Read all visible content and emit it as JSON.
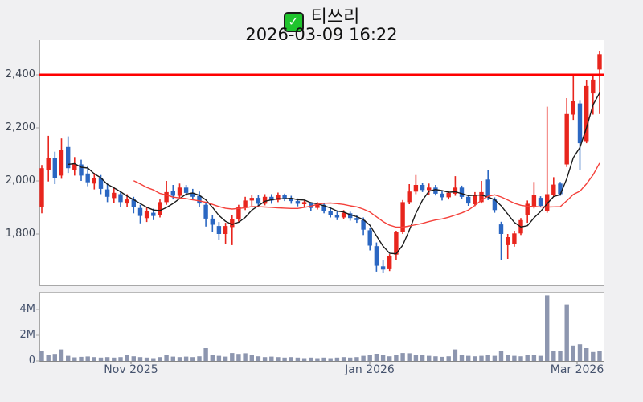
{
  "header": {
    "check_icon": "white-check-mark",
    "check_glyph": "✓",
    "title": "티쓰리",
    "subtitle": "2026-03-09 16:22"
  },
  "colors": {
    "background": "#f0f0f2",
    "plot_background": "#ffffff",
    "up_candle": "#e8251d",
    "down_candle": "#2b67c2",
    "ma_short": "#1b1b1b",
    "ma_long": "#f4403a",
    "highlight_line": "#fe0000",
    "volume_bar": "#8d96af",
    "axis_spine": "#a8a8a8",
    "price_label": "#3a4250",
    "date_label": "#46536e"
  },
  "chart_data": [
    {
      "type": "candlestick",
      "name": "price",
      "title": "티쓰리",
      "datetime": "2026-03-09 16:22",
      "ytick_labels": [
        "2,400",
        "2,200",
        "2,000",
        "1,800"
      ],
      "ytick_values": [
        2400,
        2200,
        2000,
        1800
      ],
      "ylim": [
        1606,
        2539
      ],
      "grid": false,
      "x_tick_labels": [
        "Nov 2025",
        "Jan 2026",
        "Mar 2026"
      ],
      "hline": {
        "value": 2400,
        "color": "#fe0000",
        "note": "horizontal red level line at 2,400"
      },
      "overlays": [
        {
          "name": "ma-short",
          "period": 5,
          "color": "#1b1b1b"
        },
        {
          "name": "ma-long",
          "period": 15,
          "color": "#f4403a"
        }
      ],
      "ohlc": [
        [
          1900,
          2060,
          1878,
          2048
        ],
        [
          2040,
          2170,
          1998,
          2088
        ],
        [
          2088,
          2110,
          1988,
          2010
        ],
        [
          2020,
          2160,
          2008,
          2118
        ],
        [
          2128,
          2168,
          2030,
          2048
        ],
        [
          2042,
          2090,
          2020,
          2062
        ],
        [
          2062,
          2080,
          2000,
          2020
        ],
        [
          2028,
          2058,
          1980,
          1995
        ],
        [
          1990,
          2030,
          1968,
          2010
        ],
        [
          2010,
          2022,
          1950,
          1970
        ],
        [
          1968,
          1990,
          1920,
          1940
        ],
        [
          1935,
          1975,
          1918,
          1955
        ],
        [
          1950,
          1962,
          1900,
          1920
        ],
        [
          1915,
          1950,
          1902,
          1930
        ],
        [
          1930,
          1940,
          1878,
          1900
        ],
        [
          1898,
          1910,
          1840,
          1868
        ],
        [
          1860,
          1900,
          1845,
          1885
        ],
        [
          1880,
          1895,
          1852,
          1868
        ],
        [
          1870,
          1930,
          1862,
          1920
        ],
        [
          1920,
          2000,
          1910,
          1958
        ],
        [
          1962,
          1985,
          1930,
          1944
        ],
        [
          1944,
          1990,
          1935,
          1975
        ],
        [
          1975,
          1985,
          1944,
          1955
        ],
        [
          1955,
          1970,
          1928,
          1940
        ],
        [
          1944,
          1960,
          1900,
          1915
        ],
        [
          1910,
          1920,
          1828,
          1858
        ],
        [
          1858,
          1870,
          1808,
          1835
        ],
        [
          1830,
          1845,
          1778,
          1800
        ],
        [
          1800,
          1842,
          1762,
          1830
        ],
        [
          1826,
          1872,
          1758,
          1856
        ],
        [
          1856,
          1910,
          1846,
          1900
        ],
        [
          1900,
          1940,
          1890,
          1926
        ],
        [
          1926,
          1946,
          1906,
          1936
        ],
        [
          1936,
          1946,
          1904,
          1914
        ],
        [
          1914,
          1950,
          1908,
          1940
        ],
        [
          1940,
          1950,
          1914,
          1926
        ],
        [
          1928,
          1956,
          1920,
          1948
        ],
        [
          1946,
          1952,
          1924,
          1934
        ],
        [
          1934,
          1944,
          1914,
          1924
        ],
        [
          1924,
          1934,
          1904,
          1914
        ],
        [
          1912,
          1926,
          1900,
          1920
        ],
        [
          1918,
          1920,
          1888,
          1898
        ],
        [
          1898,
          1920,
          1892,
          1912
        ],
        [
          1910,
          1916,
          1878,
          1888
        ],
        [
          1888,
          1900,
          1862,
          1872
        ],
        [
          1872,
          1886,
          1852,
          1862
        ],
        [
          1862,
          1890,
          1856,
          1880
        ],
        [
          1878,
          1884,
          1850,
          1860
        ],
        [
          1860,
          1872,
          1842,
          1852
        ],
        [
          1852,
          1862,
          1796,
          1816
        ],
        [
          1814,
          1824,
          1738,
          1756
        ],
        [
          1754,
          1768,
          1658,
          1680
        ],
        [
          1678,
          1700,
          1652,
          1666
        ],
        [
          1670,
          1724,
          1660,
          1718
        ],
        [
          1722,
          1812,
          1700,
          1806
        ],
        [
          1806,
          1928,
          1800,
          1920
        ],
        [
          1920,
          1988,
          1912,
          1960
        ],
        [
          1960,
          2022,
          1950,
          1985
        ],
        [
          1985,
          1992,
          1958,
          1966
        ],
        [
          1966,
          1990,
          1948,
          1975
        ],
        [
          1975,
          1985,
          1945,
          1952
        ],
        [
          1952,
          1962,
          1926,
          1938
        ],
        [
          1938,
          1962,
          1930,
          1955
        ],
        [
          1952,
          2018,
          1944,
          1975
        ],
        [
          1975,
          1982,
          1932,
          1940
        ],
        [
          1940,
          1948,
          1906,
          1915
        ],
        [
          1912,
          1958,
          1905,
          1945
        ],
        [
          1920,
          2000,
          1915,
          1958
        ],
        [
          2005,
          2040,
          1928,
          1938
        ],
        [
          1930,
          1938,
          1880,
          1890
        ],
        [
          1836,
          1846,
          1702,
          1800
        ],
        [
          1758,
          1800,
          1706,
          1788
        ],
        [
          1762,
          1812,
          1752,
          1802
        ],
        [
          1802,
          1860,
          1796,
          1852
        ],
        [
          1872,
          1926,
          1842,
          1914
        ],
        [
          1902,
          1996,
          1896,
          1948
        ],
        [
          1936,
          1942,
          1900,
          1906
        ],
        [
          1886,
          2280,
          1880,
          1950
        ],
        [
          1946,
          2014,
          1940,
          1986
        ],
        [
          1990,
          1996,
          1944,
          1950
        ],
        [
          2062,
          2312,
          2052,
          2252
        ],
        [
          2250,
          2400,
          2230,
          2300
        ],
        [
          2292,
          2302,
          2040,
          2142
        ],
        [
          2150,
          2380,
          2142,
          2358
        ],
        [
          2330,
          2400,
          2250,
          2382
        ],
        [
          2420,
          2490,
          2252,
          2478
        ]
      ]
    },
    {
      "type": "bar",
      "name": "volume",
      "ytick_labels": [
        "4M",
        "2M",
        "0"
      ],
      "ytick_values": [
        4000000,
        2000000,
        0
      ],
      "ylim": [
        0,
        5375000
      ],
      "color": "#8d96af",
      "values_millions": [
        0.75,
        0.45,
        0.55,
        0.9,
        0.4,
        0.28,
        0.32,
        0.35,
        0.3,
        0.26,
        0.3,
        0.26,
        0.3,
        0.45,
        0.36,
        0.3,
        0.26,
        0.22,
        0.3,
        0.46,
        0.34,
        0.3,
        0.34,
        0.3,
        0.36,
        1.0,
        0.5,
        0.4,
        0.34,
        0.62,
        0.55,
        0.6,
        0.5,
        0.36,
        0.3,
        0.34,
        0.3,
        0.26,
        0.3,
        0.26,
        0.22,
        0.26,
        0.22,
        0.26,
        0.22,
        0.26,
        0.3,
        0.26,
        0.3,
        0.4,
        0.46,
        0.56,
        0.5,
        0.36,
        0.5,
        0.62,
        0.6,
        0.5,
        0.44,
        0.4,
        0.36,
        0.32,
        0.36,
        0.9,
        0.5,
        0.4,
        0.36,
        0.4,
        0.44,
        0.4,
        0.8,
        0.5,
        0.4,
        0.36,
        0.44,
        0.5,
        0.4,
        5.1,
        0.8,
        0.8,
        4.4,
        1.2,
        1.3,
        1.0,
        0.7,
        0.8
      ]
    }
  ]
}
